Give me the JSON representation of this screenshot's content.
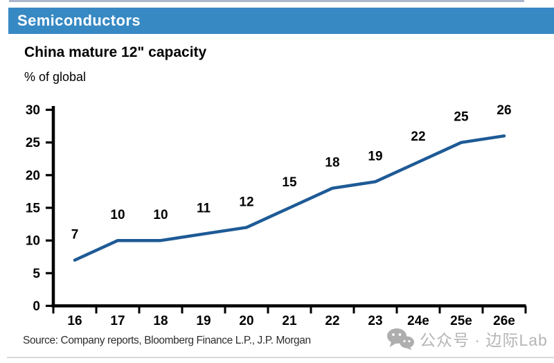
{
  "header": {
    "label": "Semiconductors"
  },
  "chart_data": {
    "type": "line",
    "title": "China mature 12\" capacity",
    "subtitle": "% of global",
    "categories": [
      "16",
      "17",
      "18",
      "19",
      "20",
      "21",
      "22",
      "23",
      "24e",
      "25e",
      "26e"
    ],
    "values": [
      7,
      10,
      10,
      11,
      12,
      15,
      18,
      19,
      22,
      25,
      26
    ],
    "ylabel": "% of global",
    "ylim": [
      0,
      30
    ],
    "ytick_step": 5,
    "grid": false,
    "legend": "none",
    "line_color": "#1E5A96",
    "data_labels": true
  },
  "footer": {
    "source": "Source: Company reports, Bloomberg Finance L.P., J.P. Morgan"
  },
  "watermark": {
    "icon": "wechat-icon",
    "text": "公众号 · 边际Lab"
  },
  "colors": {
    "header_bg": "#3789C4",
    "header_text": "#FFFFFF",
    "line": "#1E5A96",
    "axis": "#000000",
    "watermark_gray": "#B5B5B5",
    "top_rule": "#A9B6CC",
    "bottom_rule": "#D9D9D9"
  }
}
